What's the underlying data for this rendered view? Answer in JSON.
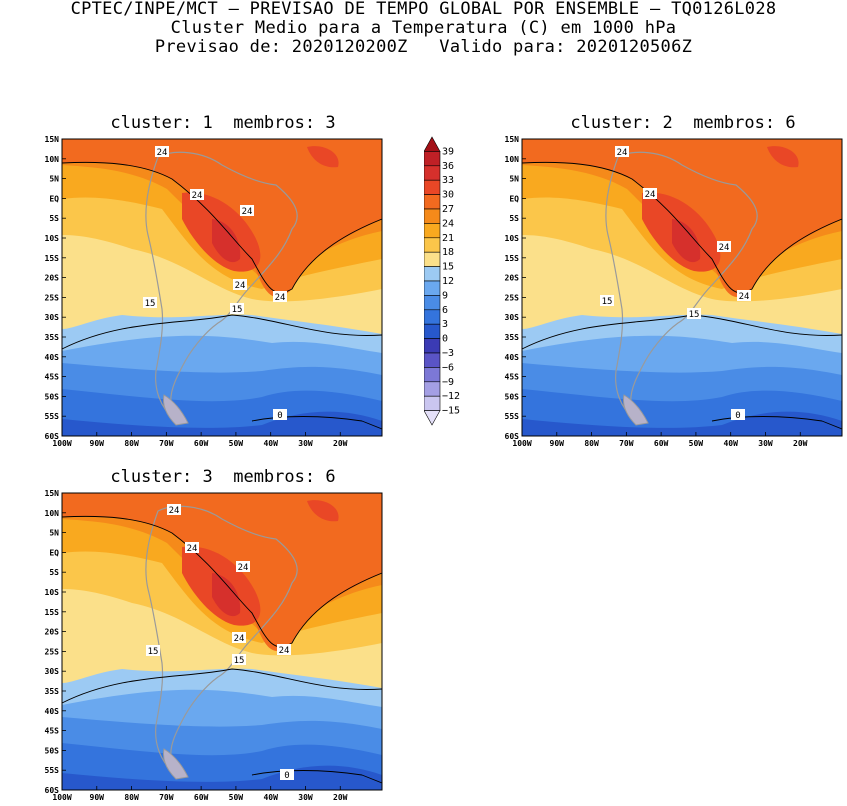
{
  "header": {
    "line1": "CPTEC/INPE/MCT — PREVISAO DE TEMPO GLOBAL POR ENSEMBLE — TQ0126L028",
    "line2": "Cluster Medio para a Temperatura (C) em 1000 hPa",
    "line3": "Previsao de: 2020120200Z   Valido para: 2020120506Z"
  },
  "axes": {
    "lat_labels": [
      "15N",
      "10N",
      "5N",
      "EQ",
      "5S",
      "10S",
      "15S",
      "20S",
      "25S",
      "30S",
      "35S",
      "40S",
      "45S",
      "50S",
      "55S",
      "60S"
    ],
    "lon_labels": [
      "100W",
      "90W",
      "80W",
      "70W",
      "60W",
      "50W",
      "40W",
      "30W",
      "20W"
    ]
  },
  "colorbar": {
    "labels": [
      "39",
      "36",
      "33",
      "30",
      "27",
      "24",
      "21",
      "18",
      "15",
      "12",
      "9",
      "6",
      "3",
      "0",
      "−3",
      "−6",
      "−9",
      "−12",
      "−15"
    ],
    "colors": [
      "#a30f16",
      "#c02026",
      "#d6302c",
      "#e94726",
      "#f26a1f",
      "#f58a1a",
      "#f9a91f",
      "#fbc64a",
      "#fbe08a",
      "#9ccaf3",
      "#6aa8ef",
      "#4a8ce6",
      "#3474dd",
      "#2758cc",
      "#3b3bb4",
      "#5a54c6",
      "#7c78d6",
      "#a49fe4",
      "#cac6f0",
      "#e4e0f8"
    ]
  },
  "panels": [
    {
      "title": "cluster: 1  membros: 3",
      "contour_labels": [
        "24",
        "24",
        "24",
        "24",
        "24",
        "15",
        "15",
        "0"
      ]
    },
    {
      "title": "cluster: 2  membros: 6",
      "contour_labels": [
        "24",
        "24",
        "24",
        "24",
        "15",
        "15",
        "0"
      ]
    },
    {
      "title": "cluster: 3  membros: 6",
      "contour_labels": [
        "24",
        "24",
        "24",
        "24",
        "24",
        "15",
        "15",
        "0"
      ]
    }
  ]
}
